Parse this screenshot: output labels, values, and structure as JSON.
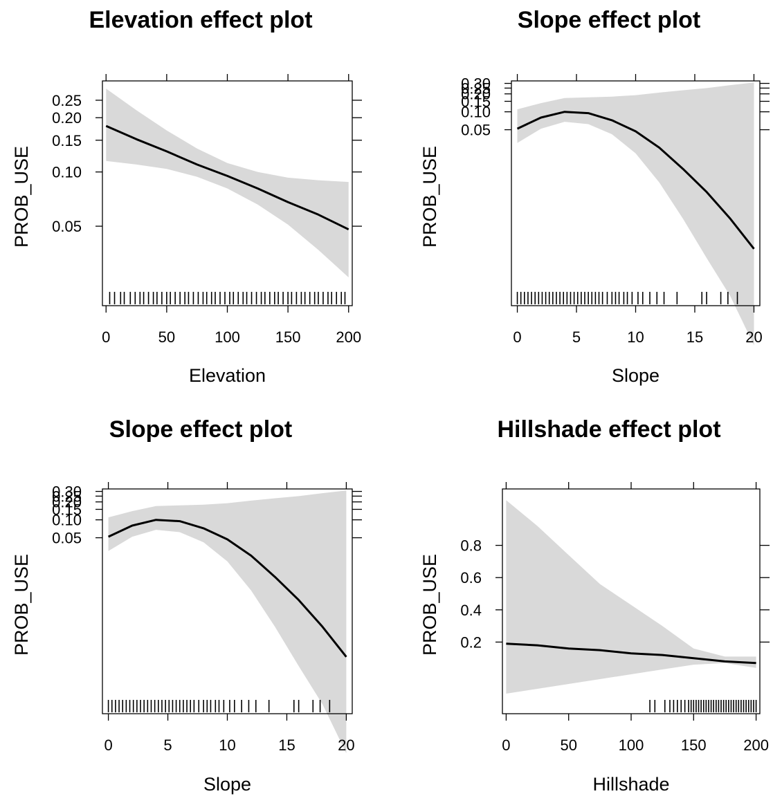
{
  "chart_data": [
    {
      "type": "line",
      "title": "Elevation effect plot",
      "xlabel": "Elevation",
      "ylabel": "PROB_USE",
      "xlim": [
        -3,
        203
      ],
      "ylim": [
        0.022,
        0.32
      ],
      "yscale": "log",
      "x_ticks": [
        0,
        50,
        100,
        150,
        200
      ],
      "x_tick_labels": [
        "0",
        "50",
        "100",
        "150",
        "200"
      ],
      "y_ticks": [
        0.05,
        0.1,
        0.15,
        0.2,
        0.25
      ],
      "y_tick_labels": [
        "0.05",
        "0.10",
        "0.15",
        "0.20",
        "0.25"
      ],
      "series": [
        {
          "x": [
            0,
            25,
            50,
            75,
            100,
            125,
            150,
            175,
            200
          ],
          "fit": [
            0.18,
            0.152,
            0.13,
            0.11,
            0.095,
            0.081,
            0.068,
            0.058,
            0.048
          ],
          "lower": [
            0.115,
            0.11,
            0.104,
            0.094,
            0.081,
            0.066,
            0.051,
            0.037,
            0.026
          ],
          "upper": [
            0.29,
            0.22,
            0.17,
            0.135,
            0.112,
            0.1,
            0.093,
            0.09,
            0.088
          ]
        }
      ],
      "rug": [
        3,
        7,
        12,
        15,
        20,
        24,
        28,
        31,
        35,
        39,
        42,
        46,
        50,
        53,
        57,
        61,
        65,
        68,
        72,
        76,
        80,
        83,
        87,
        90,
        94,
        98,
        102,
        105,
        109,
        113,
        116,
        120,
        124,
        128,
        131,
        135,
        139,
        142,
        146,
        150,
        153,
        157,
        161,
        164,
        168,
        172,
        175,
        179,
        183,
        186,
        190,
        194,
        197
      ],
      "band_color": "#d9d9d9",
      "line_color": "#000000"
    },
    {
      "type": "line",
      "title": "Slope effect plot",
      "xlabel": "Slope",
      "ylabel": "PROB_USE",
      "xlim": [
        -0.5,
        20.5
      ],
      "ylim": [
        0.0001,
        0.33
      ],
      "yscale": "log",
      "x_ticks": [
        0,
        5,
        10,
        15,
        20
      ],
      "x_tick_labels": [
        "0",
        "5",
        "10",
        "15",
        "20"
      ],
      "y_ticks": [
        0.05,
        0.1,
        0.15,
        0.2,
        0.25,
        0.3
      ],
      "y_tick_labels": [
        "0.05",
        "0.10",
        "0.15",
        "0.20",
        "0.25",
        "0.30"
      ],
      "series": [
        {
          "x": [
            0,
            2,
            4,
            6,
            8,
            10,
            12,
            14,
            16,
            18,
            20
          ],
          "fit": [
            0.052,
            0.08,
            0.1,
            0.095,
            0.072,
            0.047,
            0.025,
            0.011,
            0.0045,
            0.0016,
            0.0005
          ],
          "lower": [
            0.03,
            0.052,
            0.068,
            0.062,
            0.042,
            0.02,
            0.0065,
            0.0016,
            0.00035,
            8e-05,
            1.2e-05
          ],
          "upper": [
            0.11,
            0.14,
            0.17,
            0.175,
            0.18,
            0.19,
            0.21,
            0.23,
            0.25,
            0.28,
            0.31
          ]
        }
      ],
      "rug": [
        0,
        0.3,
        0.6,
        0.9,
        1.2,
        1.5,
        1.8,
        2.1,
        2.4,
        2.7,
        3.0,
        3.3,
        3.6,
        3.9,
        4.2,
        4.5,
        4.8,
        5.1,
        5.4,
        5.7,
        6.0,
        6.3,
        6.6,
        6.9,
        7.2,
        7.6,
        8.0,
        8.3,
        8.6,
        9.0,
        9.3,
        9.7,
        10.2,
        10.6,
        11.2,
        11.8,
        12.4,
        13.5,
        15.6,
        16.0,
        17.2,
        17.8,
        18.6
      ],
      "band_color": "#d9d9d9",
      "line_color": "#000000"
    },
    {
      "type": "line",
      "title": "Slope effect plot",
      "xlabel": "Slope",
      "ylabel": "PROB_USE",
      "xlim": [
        -0.5,
        20.5
      ],
      "ylim": [
        0.0001,
        0.33
      ],
      "yscale": "log",
      "x_ticks": [
        0,
        5,
        10,
        15,
        20
      ],
      "x_tick_labels": [
        "0",
        "5",
        "10",
        "15",
        "20"
      ],
      "y_ticks": [
        0.05,
        0.1,
        0.15,
        0.2,
        0.25,
        0.3
      ],
      "y_tick_labels": [
        "0.05",
        "0.10",
        "0.15",
        "0.20",
        "0.25",
        "0.30"
      ],
      "series": [
        {
          "x": [
            0,
            2,
            4,
            6,
            8,
            10,
            12,
            14,
            16,
            18,
            20
          ],
          "fit": [
            0.052,
            0.08,
            0.1,
            0.095,
            0.072,
            0.047,
            0.025,
            0.011,
            0.0045,
            0.0016,
            0.0005
          ],
          "lower": [
            0.03,
            0.052,
            0.068,
            0.062,
            0.042,
            0.02,
            0.0065,
            0.0016,
            0.00035,
            8e-05,
            1.2e-05
          ],
          "upper": [
            0.11,
            0.14,
            0.17,
            0.175,
            0.18,
            0.19,
            0.21,
            0.23,
            0.25,
            0.28,
            0.31
          ]
        }
      ],
      "rug": [
        0,
        0.3,
        0.6,
        0.9,
        1.2,
        1.5,
        1.8,
        2.1,
        2.4,
        2.7,
        3.0,
        3.3,
        3.6,
        3.9,
        4.2,
        4.5,
        4.8,
        5.1,
        5.4,
        5.7,
        6.0,
        6.3,
        6.6,
        6.9,
        7.2,
        7.6,
        8.0,
        8.3,
        8.6,
        9.0,
        9.3,
        9.7,
        10.2,
        10.6,
        11.2,
        11.8,
        12.4,
        13.5,
        15.6,
        16.0,
        17.2,
        17.8,
        18.6
      ],
      "band_color": "#d9d9d9",
      "line_color": "#000000"
    },
    {
      "type": "line",
      "title": "Hillshade effect plot",
      "xlabel": "Hillshade",
      "ylabel": "PROB_USE",
      "xlim": [
        -3,
        203
      ],
      "ylim": [
        -0.15,
        1.15
      ],
      "yscale": "logit",
      "x_ticks": [
        0,
        50,
        100,
        150,
        200
      ],
      "x_tick_labels": [
        "0",
        "50",
        "100",
        "150",
        "200"
      ],
      "y_ticks": [
        0.2,
        0.4,
        0.6,
        0.8
      ],
      "y_tick_labels": [
        "0.2",
        "0.4",
        "0.6",
        "0.8"
      ],
      "series": [
        {
          "x": [
            0,
            25,
            50,
            75,
            100,
            125,
            150,
            175,
            200
          ],
          "fit": [
            0.19,
            0.18,
            0.16,
            0.15,
            0.13,
            0.12,
            0.1,
            0.08,
            0.07
          ],
          "lower": [
            -0.12,
            -0.09,
            -0.06,
            -0.03,
            0.0,
            0.03,
            0.06,
            0.07,
            0.04
          ],
          "upper": [
            1.08,
            0.92,
            0.74,
            0.56,
            0.43,
            0.3,
            0.16,
            0.11,
            0.11
          ]
        }
      ],
      "rug": [
        115,
        119,
        127,
        131,
        134,
        137,
        140,
        143,
        146,
        148,
        150,
        152,
        154,
        156,
        158,
        160,
        162,
        164,
        166,
        168,
        170,
        172,
        174,
        176,
        178,
        180,
        182,
        184,
        186,
        188,
        190,
        192,
        194,
        196,
        198,
        200
      ],
      "band_color": "#d9d9d9",
      "line_color": "#000000"
    }
  ]
}
